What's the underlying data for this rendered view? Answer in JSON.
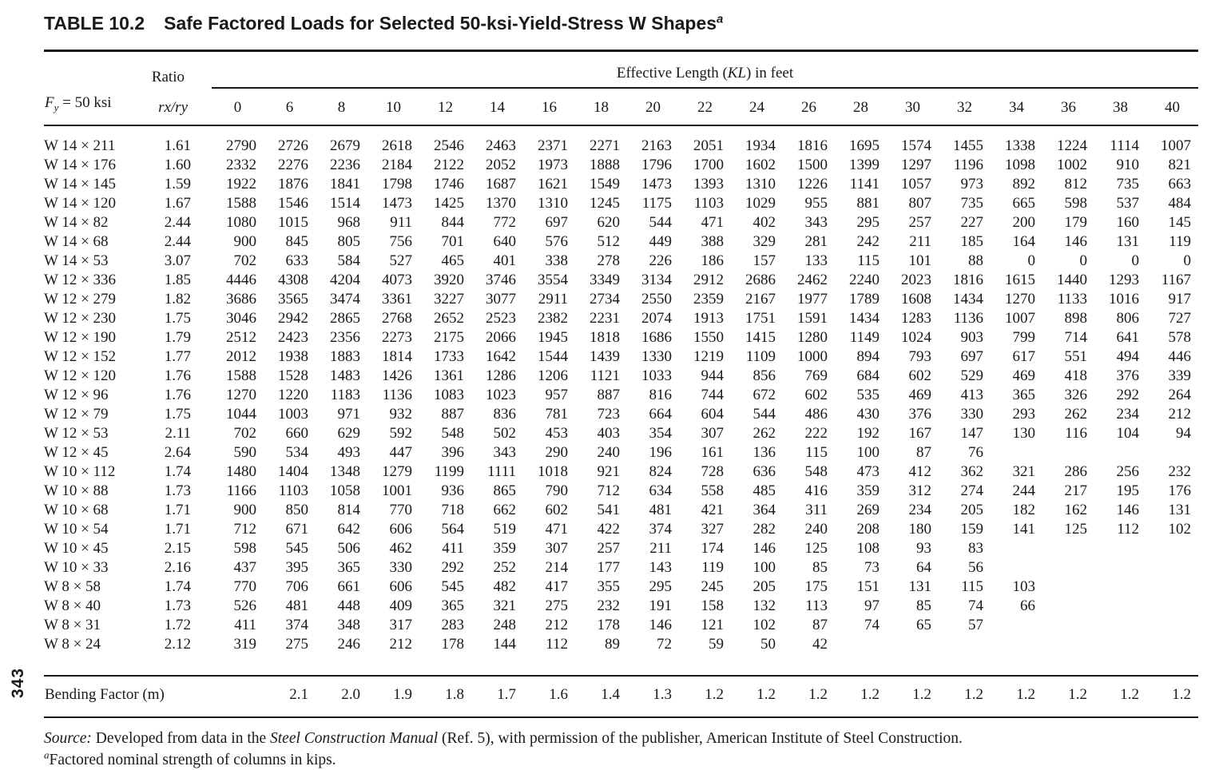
{
  "page_number": "343",
  "title": {
    "tag": "TABLE 10.2",
    "text": "Safe Factored Loads for Selected 50-ksi-Yield-Stress W Shapes",
    "footnote_mark": "a"
  },
  "header": {
    "ratio_label": "Ratio",
    "rxry_label": "rx/ry",
    "fy": {
      "symbol": "F",
      "subscript": "y",
      "suffix": " = 50 ksi"
    },
    "kl": {
      "prefix": "Effective Length (",
      "italic": "KL",
      "suffix": ") in feet"
    },
    "kl_columns": [
      "0",
      "6",
      "8",
      "10",
      "12",
      "14",
      "16",
      "18",
      "20",
      "22",
      "24",
      "26",
      "28",
      "30",
      "32",
      "34",
      "36",
      "38",
      "40"
    ]
  },
  "rows": [
    {
      "shape": "W 14 × 211",
      "ratio": "1.61",
      "values": [
        "2790",
        "2726",
        "2679",
        "2618",
        "2546",
        "2463",
        "2371",
        "2271",
        "2163",
        "2051",
        "1934",
        "1816",
        "1695",
        "1574",
        "1455",
        "1338",
        "1224",
        "1114",
        "1007"
      ]
    },
    {
      "shape": "W 14 × 176",
      "ratio": "1.60",
      "values": [
        "2332",
        "2276",
        "2236",
        "2184",
        "2122",
        "2052",
        "1973",
        "1888",
        "1796",
        "1700",
        "1602",
        "1500",
        "1399",
        "1297",
        "1196",
        "1098",
        "1002",
        "910",
        "821"
      ]
    },
    {
      "shape": "W 14 × 145",
      "ratio": "1.59",
      "values": [
        "1922",
        "1876",
        "1841",
        "1798",
        "1746",
        "1687",
        "1621",
        "1549",
        "1473",
        "1393",
        "1310",
        "1226",
        "1141",
        "1057",
        "973",
        "892",
        "812",
        "735",
        "663"
      ]
    },
    {
      "shape": "W 14 × 120",
      "ratio": "1.67",
      "values": [
        "1588",
        "1546",
        "1514",
        "1473",
        "1425",
        "1370",
        "1310",
        "1245",
        "1175",
        "1103",
        "1029",
        "955",
        "881",
        "807",
        "735",
        "665",
        "598",
        "537",
        "484"
      ]
    },
    {
      "shape": "W 14 × 82",
      "ratio": "2.44",
      "values": [
        "1080",
        "1015",
        "968",
        "911",
        "844",
        "772",
        "697",
        "620",
        "544",
        "471",
        "402",
        "343",
        "295",
        "257",
        "227",
        "200",
        "179",
        "160",
        "145"
      ]
    },
    {
      "shape": "W 14 × 68",
      "ratio": "2.44",
      "values": [
        "900",
        "845",
        "805",
        "756",
        "701",
        "640",
        "576",
        "512",
        "449",
        "388",
        "329",
        "281",
        "242",
        "211",
        "185",
        "164",
        "146",
        "131",
        "119"
      ]
    },
    {
      "shape": "W 14 × 53",
      "ratio": "3.07",
      "values": [
        "702",
        "633",
        "584",
        "527",
        "465",
        "401",
        "338",
        "278",
        "226",
        "186",
        "157",
        "133",
        "115",
        "101",
        "88",
        "0",
        "0",
        "0",
        "0"
      ]
    },
    {
      "shape": "W 12 × 336",
      "ratio": "1.85",
      "values": [
        "4446",
        "4308",
        "4204",
        "4073",
        "3920",
        "3746",
        "3554",
        "3349",
        "3134",
        "2912",
        "2686",
        "2462",
        "2240",
        "2023",
        "1816",
        "1615",
        "1440",
        "1293",
        "1167"
      ]
    },
    {
      "shape": "W 12 × 279",
      "ratio": "1.82",
      "values": [
        "3686",
        "3565",
        "3474",
        "3361",
        "3227",
        "3077",
        "2911",
        "2734",
        "2550",
        "2359",
        "2167",
        "1977",
        "1789",
        "1608",
        "1434",
        "1270",
        "1133",
        "1016",
        "917"
      ]
    },
    {
      "shape": "W 12 × 230",
      "ratio": "1.75",
      "values": [
        "3046",
        "2942",
        "2865",
        "2768",
        "2652",
        "2523",
        "2382",
        "2231",
        "2074",
        "1913",
        "1751",
        "1591",
        "1434",
        "1283",
        "1136",
        "1007",
        "898",
        "806",
        "727"
      ]
    },
    {
      "shape": "W 12 × 190",
      "ratio": "1.79",
      "values": [
        "2512",
        "2423",
        "2356",
        "2273",
        "2175",
        "2066",
        "1945",
        "1818",
        "1686",
        "1550",
        "1415",
        "1280",
        "1149",
        "1024",
        "903",
        "799",
        "714",
        "641",
        "578"
      ]
    },
    {
      "shape": "W 12 × 152",
      "ratio": "1.77",
      "values": [
        "2012",
        "1938",
        "1883",
        "1814",
        "1733",
        "1642",
        "1544",
        "1439",
        "1330",
        "1219",
        "1109",
        "1000",
        "894",
        "793",
        "697",
        "617",
        "551",
        "494",
        "446"
      ]
    },
    {
      "shape": "W 12 × 120",
      "ratio": "1.76",
      "values": [
        "1588",
        "1528",
        "1483",
        "1426",
        "1361",
        "1286",
        "1206",
        "1121",
        "1033",
        "944",
        "856",
        "769",
        "684",
        "602",
        "529",
        "469",
        "418",
        "376",
        "339"
      ]
    },
    {
      "shape": "W 12 × 96",
      "ratio": "1.76",
      "values": [
        "1270",
        "1220",
        "1183",
        "1136",
        "1083",
        "1023",
        "957",
        "887",
        "816",
        "744",
        "672",
        "602",
        "535",
        "469",
        "413",
        "365",
        "326",
        "292",
        "264"
      ]
    },
    {
      "shape": "W 12 × 79",
      "ratio": "1.75",
      "values": [
        "1044",
        "1003",
        "971",
        "932",
        "887",
        "836",
        "781",
        "723",
        "664",
        "604",
        "544",
        "486",
        "430",
        "376",
        "330",
        "293",
        "262",
        "234",
        "212"
      ]
    },
    {
      "shape": "W 12 × 53",
      "ratio": "2.11",
      "values": [
        "702",
        "660",
        "629",
        "592",
        "548",
        "502",
        "453",
        "403",
        "354",
        "307",
        "262",
        "222",
        "192",
        "167",
        "147",
        "130",
        "116",
        "104",
        "94"
      ]
    },
    {
      "shape": "W 12 × 45",
      "ratio": "2.64",
      "values": [
        "590",
        "534",
        "493",
        "447",
        "396",
        "343",
        "290",
        "240",
        "196",
        "161",
        "136",
        "115",
        "100",
        "87",
        "76",
        "",
        "",
        "",
        ""
      ]
    },
    {
      "shape": "W 10 × 112",
      "ratio": "1.74",
      "values": [
        "1480",
        "1404",
        "1348",
        "1279",
        "1199",
        "1111",
        "1018",
        "921",
        "824",
        "728",
        "636",
        "548",
        "473",
        "412",
        "362",
        "321",
        "286",
        "256",
        "232"
      ]
    },
    {
      "shape": "W 10 × 88",
      "ratio": "1.73",
      "values": [
        "1166",
        "1103",
        "1058",
        "1001",
        "936",
        "865",
        "790",
        "712",
        "634",
        "558",
        "485",
        "416",
        "359",
        "312",
        "274",
        "244",
        "217",
        "195",
        "176"
      ]
    },
    {
      "shape": "W 10 × 68",
      "ratio": "1.71",
      "values": [
        "900",
        "850",
        "814",
        "770",
        "718",
        "662",
        "602",
        "541",
        "481",
        "421",
        "364",
        "311",
        "269",
        "234",
        "205",
        "182",
        "162",
        "146",
        "131"
      ]
    },
    {
      "shape": "W 10 × 54",
      "ratio": "1.71",
      "values": [
        "712",
        "671",
        "642",
        "606",
        "564",
        "519",
        "471",
        "422",
        "374",
        "327",
        "282",
        "240",
        "208",
        "180",
        "159",
        "141",
        "125",
        "112",
        "102"
      ]
    },
    {
      "shape": "W 10 × 45",
      "ratio": "2.15",
      "values": [
        "598",
        "545",
        "506",
        "462",
        "411",
        "359",
        "307",
        "257",
        "211",
        "174",
        "146",
        "125",
        "108",
        "93",
        "83",
        "",
        "",
        "",
        ""
      ]
    },
    {
      "shape": "W 10 × 33",
      "ratio": "2.16",
      "values": [
        "437",
        "395",
        "365",
        "330",
        "292",
        "252",
        "214",
        "177",
        "143",
        "119",
        "100",
        "85",
        "73",
        "64",
        "56",
        "",
        "",
        "",
        ""
      ]
    },
    {
      "shape": "W 8 × 58",
      "ratio": "1.74",
      "values": [
        "770",
        "706",
        "661",
        "606",
        "545",
        "482",
        "417",
        "355",
        "295",
        "245",
        "205",
        "175",
        "151",
        "131",
        "115",
        "103",
        "",
        "",
        ""
      ]
    },
    {
      "shape": "W 8 × 40",
      "ratio": "1.73",
      "values": [
        "526",
        "481",
        "448",
        "409",
        "365",
        "321",
        "275",
        "232",
        "191",
        "158",
        "132",
        "113",
        "97",
        "85",
        "74",
        "66",
        "",
        "",
        ""
      ]
    },
    {
      "shape": "W 8 × 31",
      "ratio": "1.72",
      "values": [
        "411",
        "374",
        "348",
        "317",
        "283",
        "248",
        "212",
        "178",
        "146",
        "121",
        "102",
        "87",
        "74",
        "65",
        "57",
        "",
        "",
        "",
        ""
      ]
    },
    {
      "shape": "W 8 × 24",
      "ratio": "2.12",
      "values": [
        "319",
        "275",
        "246",
        "212",
        "178",
        "144",
        "112",
        "89",
        "72",
        "59",
        "50",
        "42",
        "",
        "",
        "",
        "",
        "",
        "",
        ""
      ]
    }
  ],
  "bending_factor": {
    "label": "Bending Factor (m)",
    "values": [
      "",
      "2.1",
      "2.0",
      "1.9",
      "1.8",
      "1.7",
      "1.6",
      "1.4",
      "1.3",
      "1.2",
      "1.2",
      "1.2",
      "1.2",
      "1.2",
      "1.2",
      "1.2",
      "1.2",
      "1.2",
      "1.2"
    ]
  },
  "source": {
    "label": "Source:",
    "pre": " Developed from data in the ",
    "italic": "Steel Construction Manual",
    "post": " (Ref. 5), with permission of the publisher, American Institute of Steel Construction."
  },
  "footnote": {
    "mark": "a",
    "text": "Factored nominal strength of columns in kips."
  }
}
